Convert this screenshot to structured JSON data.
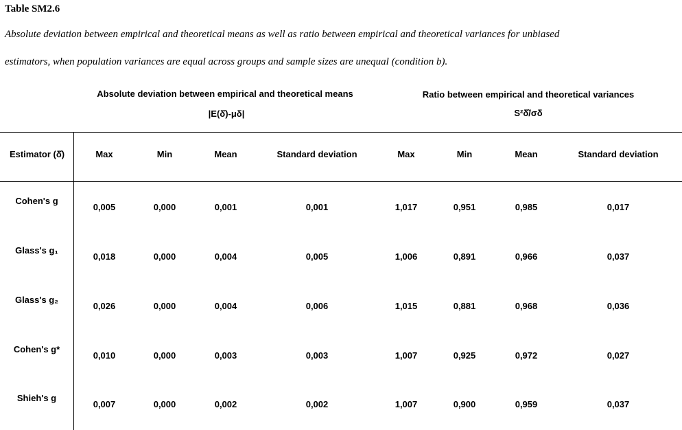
{
  "table_title": "Table SM2.6",
  "caption_line1": "Absolute deviation between empirical and theoretical means as well as ratio between empirical and theoretical variances for unbiased",
  "caption_line2": "estimators, when population variances are equal across groups and sample sizes are unequal (condition b).",
  "group_headers": {
    "means": "Absolute deviation between empirical and theoretical means",
    "means_symbol": "|E(δ̂)-μδ|",
    "variances": "Ratio between empirical and theoretical variances",
    "variances_symbol": "S²δ̂/σδ"
  },
  "column_headers": [
    "Estimator (δ̂)",
    "Max",
    "Min",
    "Mean",
    "Standard deviation",
    "Max",
    "Min",
    "Mean",
    "Standard deviation"
  ],
  "rows": [
    {
      "estimator": "Cohen's g",
      "values": [
        "0,005",
        "0,000",
        "0,001",
        "0,001",
        "1,017",
        "0,951",
        "0,985",
        "0,017"
      ]
    },
    {
      "estimator": "Glass's g₁",
      "values": [
        "0,018",
        "0,000",
        "0,004",
        "0,005",
        "1,006",
        "0,891",
        "0,966",
        "0,037"
      ]
    },
    {
      "estimator": "Glass's g₂",
      "values": [
        "0,026",
        "0,000",
        "0,004",
        "0,006",
        "1,015",
        "0,881",
        "0,968",
        "0,036"
      ]
    },
    {
      "estimator": "Cohen's g*",
      "values": [
        "0,010",
        "0,000",
        "0,003",
        "0,003",
        "1,007",
        "0,925",
        "0,972",
        "0,027"
      ]
    },
    {
      "estimator": "Shieh's g",
      "values": [
        "0,007",
        "0,000",
        "0,002",
        "0,002",
        "1,007",
        "0,900",
        "0,959",
        "0,037"
      ]
    }
  ]
}
